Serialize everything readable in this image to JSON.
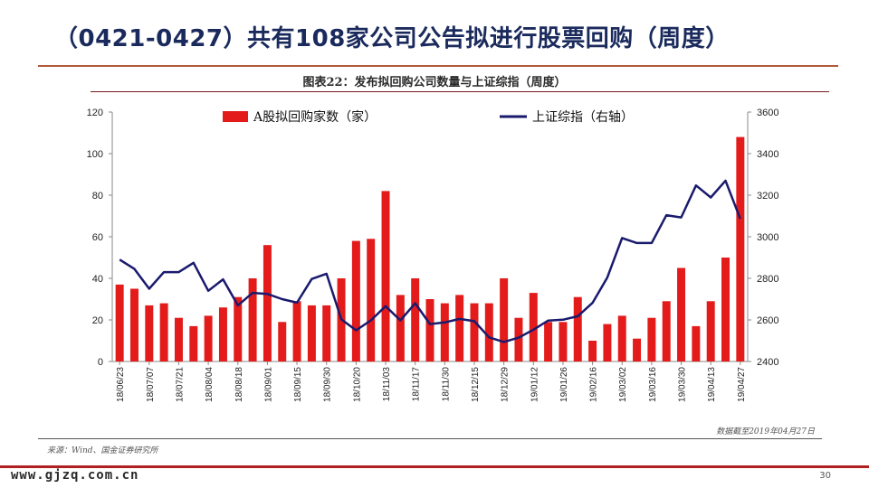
{
  "slide": {
    "title": "（0421-0427）共有108家公司公告拟进行股票回购（周度）",
    "page_number": "30",
    "watermark": "www.gjzq.com.cn"
  },
  "colors": {
    "bar": "#e31b1b",
    "line": "#1a1a6e",
    "title": "#1a2a5c"
  },
  "chart_data": {
    "type": "bar+line",
    "title": "图表22：发布拟回购公司数量与上证综指（周度）",
    "categories": [
      "18/06/23",
      "18/06/30",
      "18/07/07",
      "18/07/14",
      "18/07/21",
      "18/07/28",
      "18/08/04",
      "18/08/11",
      "18/08/18",
      "18/08/25",
      "18/09/01",
      "18/09/08",
      "18/09/15",
      "18/09/22",
      "18/09/30",
      "18/10/13",
      "18/10/20",
      "18/10/27",
      "18/11/03",
      "18/11/10",
      "18/11/17",
      "18/11/24",
      "18/11/30",
      "18/12/08",
      "18/12/15",
      "18/12/22",
      "18/12/29",
      "19/01/05",
      "19/01/12",
      "19/01/19",
      "19/01/26",
      "19/02/02",
      "19/02/16",
      "19/02/23",
      "19/03/02",
      "19/03/09",
      "19/03/16",
      "19/03/23",
      "19/03/30",
      "19/04/06",
      "19/04/13",
      "19/04/20",
      "19/04/27"
    ],
    "tick_labels": [
      "18/06/23",
      "18/07/07",
      "18/07/21",
      "18/08/04",
      "18/08/18",
      "18/09/01",
      "18/09/15",
      "18/09/30",
      "18/10/20",
      "18/11/03",
      "18/11/17",
      "18/11/30",
      "18/12/15",
      "18/12/29",
      "19/01/12",
      "19/01/26",
      "19/02/16",
      "19/03/02",
      "19/03/16",
      "19/03/30",
      "19/04/13",
      "19/04/27"
    ],
    "series": [
      {
        "name": "A股拟回购家数（家）",
        "type": "bar",
        "axis": "left",
        "values": [
          37,
          35,
          27,
          28,
          21,
          17,
          22,
          26,
          31,
          40,
          56,
          19,
          29,
          27,
          27,
          40,
          58,
          59,
          82,
          32,
          40,
          30,
          28,
          32,
          28,
          28,
          40,
          21,
          33,
          19,
          19,
          31,
          10,
          18,
          22,
          11,
          21,
          29,
          45,
          17,
          29,
          50,
          108
        ]
      },
      {
        "name": "上证综指（右轴）",
        "type": "line",
        "axis": "right",
        "values": [
          2890,
          2845,
          2750,
          2830,
          2830,
          2875,
          2740,
          2795,
          2670,
          2730,
          2725,
          2700,
          2683,
          2797,
          2822,
          2603,
          2550,
          2598,
          2666,
          2598,
          2680,
          2580,
          2588,
          2605,
          2594,
          2516,
          2494,
          2515,
          2553,
          2597,
          2601,
          2618,
          2682,
          2804,
          2994,
          2970,
          2970,
          3104,
          3093,
          3247,
          3189,
          3270,
          3086
        ]
      }
    ],
    "y_left": {
      "min": 0,
      "max": 120,
      "ticks": [
        0,
        20,
        40,
        60,
        80,
        100,
        120
      ]
    },
    "y_right": {
      "min": 2400,
      "max": 3600,
      "ticks": [
        2400,
        2600,
        2800,
        3000,
        3200,
        3400,
        3600
      ]
    },
    "legend": {
      "placement": "top-center"
    }
  },
  "footnote": "数据截至2019年04月27日",
  "source": "来源：Wind、国金证券研究所"
}
